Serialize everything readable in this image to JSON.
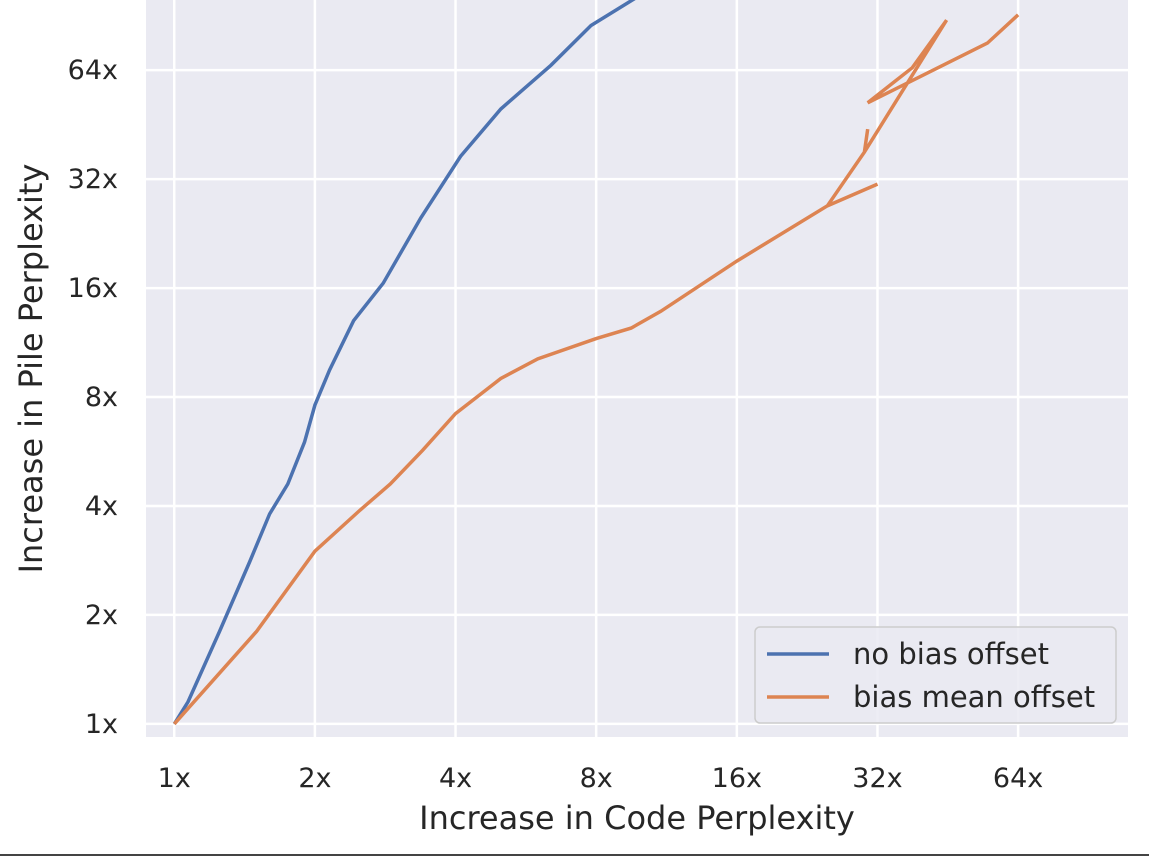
{
  "chart_data": {
    "type": "line",
    "title": "",
    "xlabel": "Increase in Code Perplexity",
    "ylabel": "Increase in Pile Perplexity",
    "x_scale": "log2",
    "y_scale": "log2",
    "xlim": [
      0.87,
      110
    ],
    "ylim": [
      0.92,
      100
    ],
    "x_ticks": [
      1,
      2,
      4,
      8,
      16,
      32,
      64
    ],
    "x_tick_labels": [
      "1x",
      "2x",
      "4x",
      "8x",
      "16x",
      "32x",
      "64x"
    ],
    "y_ticks": [
      1,
      2,
      4,
      8,
      16,
      32,
      64
    ],
    "y_tick_labels": [
      "1x",
      "2x",
      "4x",
      "8x",
      "16x",
      "32x",
      "64x"
    ],
    "grid": true,
    "legend_position": "lower-right",
    "series": [
      {
        "name": "no bias offset",
        "color": "#4c72b0",
        "x": [
          1.0,
          1.07,
          1.25,
          1.45,
          1.6,
          1.75,
          1.9,
          2.0,
          2.15,
          2.42,
          2.8,
          3.37,
          4.1,
          5.0,
          6.4,
          7.8,
          9.8
        ],
        "y": [
          1.0,
          1.15,
          1.8,
          2.8,
          3.8,
          4.6,
          6.0,
          7.6,
          9.5,
          13.0,
          16.5,
          25.0,
          37.0,
          50.0,
          66.0,
          85.0,
          102.0
        ]
      },
      {
        "name": "bias mean offset",
        "color": "#dd8452",
        "x": [
          1.0,
          1.5,
          2.0,
          2.5,
          2.9,
          3.4,
          4.0,
          5.0,
          6.0,
          8.0,
          9.5,
          11.0,
          16.0,
          25.0,
          32.0,
          25.0,
          30.0,
          30.5,
          30.0,
          45.0,
          38.0,
          30.5,
          55.0,
          64.0
        ],
        "y": [
          1.0,
          1.8,
          3.0,
          3.9,
          4.6,
          5.7,
          7.2,
          9.0,
          10.2,
          11.6,
          12.4,
          13.8,
          19.0,
          27.0,
          31.0,
          27.0,
          38.0,
          44.0,
          38.0,
          88.0,
          65.0,
          52.0,
          76.0,
          91.0
        ]
      }
    ]
  }
}
